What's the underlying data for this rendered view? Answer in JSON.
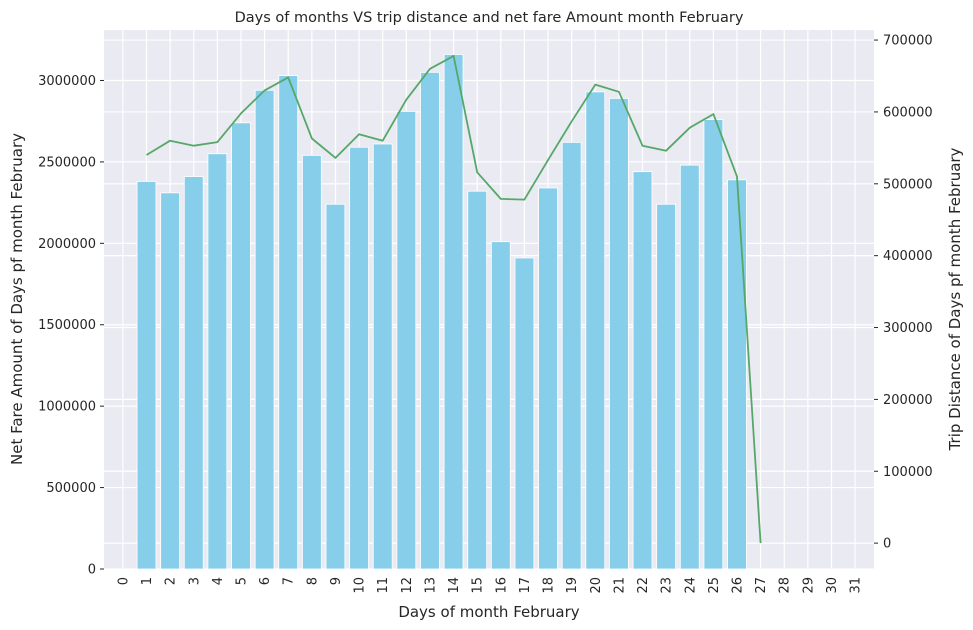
{
  "chart_data": {
    "type": "bar+line",
    "title": "Days of months VS trip distance and net fare Amount month February",
    "xlabel": "Days of month February",
    "ylabel_left": "Net Fare Amount of Days pf month February",
    "ylabel_right": "Trip Distance of Days pf month February",
    "x_ticks": [
      "0",
      "1",
      "2",
      "3",
      "4",
      "5",
      "6",
      "7",
      "8",
      "9",
      "10",
      "11",
      "12",
      "13",
      "14",
      "15",
      "16",
      "17",
      "18",
      "19",
      "20",
      "21",
      "22",
      "23",
      "24",
      "25",
      "26",
      "27",
      "28",
      "29",
      "30",
      "31"
    ],
    "xlim": [
      -0.8,
      31.8
    ],
    "y_left_ticks": [
      "0",
      "500000",
      "1000000",
      "1500000",
      "2000000",
      "2500000",
      "3000000"
    ],
    "y_left_lim": [
      0,
      3310000
    ],
    "y_right_ticks": [
      "0",
      "100000",
      "200000",
      "300000",
      "400000",
      "500000",
      "600000",
      "700000"
    ],
    "y_right_lim": [
      -36000,
      714000
    ],
    "grid": true,
    "colors": {
      "bars": "#87ceeb",
      "line": "#55a868",
      "background": "#eaeaf2",
      "grid": "#ffffff"
    },
    "series": [
      {
        "type": "bar",
        "axis": "left",
        "x": [
          1,
          2,
          3,
          4,
          5,
          6,
          7,
          8,
          9,
          10,
          11,
          12,
          13,
          14,
          15,
          16,
          17,
          18,
          19,
          20,
          21,
          22,
          23,
          24,
          25,
          26
        ],
        "values": [
          2380000,
          2310000,
          2410000,
          2550000,
          2740000,
          2940000,
          3030000,
          2540000,
          2240000,
          2590000,
          2610000,
          2810000,
          3050000,
          3160000,
          2320000,
          2010000,
          1910000,
          2340000,
          2620000,
          2930000,
          2890000,
          2440000,
          2240000,
          2480000,
          2760000,
          2390000
        ]
      },
      {
        "type": "line",
        "axis": "right",
        "x": [
          1,
          2,
          3,
          4,
          5,
          6,
          7,
          8,
          9,
          10,
          11,
          12,
          13,
          14,
          15,
          16,
          17,
          18,
          19,
          20,
          21,
          22,
          23,
          24,
          25,
          26,
          27
        ],
        "values": [
          540000,
          560000,
          553000,
          558000,
          598000,
          630000,
          648000,
          563000,
          536000,
          569000,
          560000,
          617000,
          660000,
          678000,
          516000,
          479000,
          478000,
          533000,
          587000,
          638000,
          628000,
          553000,
          546000,
          578000,
          597000,
          510000,
          0
        ]
      }
    ]
  }
}
